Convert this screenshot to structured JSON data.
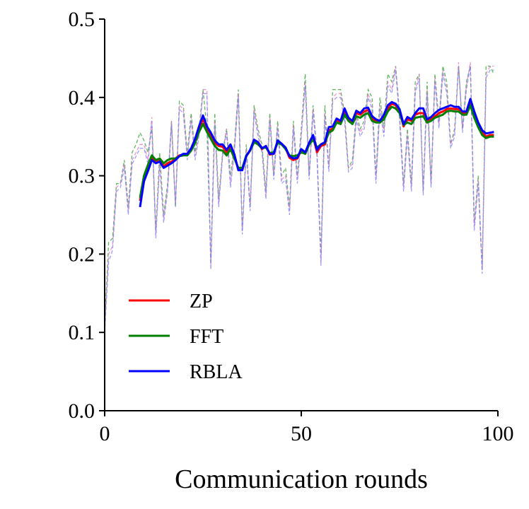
{
  "chart_data": {
    "type": "line",
    "title": "",
    "xlabel": "Communication rounds",
    "ylabel": "",
    "xlim": [
      0,
      100
    ],
    "ylim": [
      0,
      0.5
    ],
    "xticks": [
      0,
      50,
      100
    ],
    "xtick_labels": [
      "0",
      "50",
      "100"
    ],
    "yticks": [
      0.0,
      0.1,
      0.2,
      0.3,
      0.4,
      0.5
    ],
    "ytick_labels": [
      "0.0",
      "0.1",
      "0.2",
      "0.3",
      "0.4",
      "0.5"
    ],
    "grid": false,
    "legend_position": "lower-left",
    "series": [
      {
        "name": "ZP",
        "color": "#ff0000",
        "style": "solid",
        "x": [
          9,
          10,
          11,
          12,
          13,
          14,
          15,
          16,
          17,
          18,
          19,
          20,
          21,
          22,
          23,
          24,
          25,
          26,
          27,
          28,
          29,
          30,
          31,
          32,
          33,
          34,
          35,
          36,
          37,
          38,
          39,
          40,
          41,
          42,
          43,
          44,
          45,
          46,
          47,
          48,
          49,
          50,
          51,
          52,
          53,
          54,
          55,
          56,
          57,
          58,
          59,
          60,
          61,
          62,
          63,
          64,
          65,
          66,
          67,
          68,
          69,
          70,
          71,
          72,
          73,
          74,
          75,
          76,
          77,
          78,
          79,
          80,
          81,
          82,
          83,
          84,
          85,
          86,
          87,
          88,
          89,
          90,
          91,
          92,
          93,
          94,
          95,
          96,
          97,
          98,
          99
        ],
        "values": [
          0.268,
          0.297,
          0.31,
          0.323,
          0.318,
          0.322,
          0.312,
          0.316,
          0.318,
          0.322,
          0.326,
          0.327,
          0.327,
          0.333,
          0.343,
          0.36,
          0.372,
          0.36,
          0.352,
          0.342,
          0.338,
          0.337,
          0.33,
          0.338,
          0.325,
          0.308,
          0.308,
          0.325,
          0.332,
          0.345,
          0.342,
          0.334,
          0.338,
          0.327,
          0.328,
          0.344,
          0.34,
          0.335,
          0.323,
          0.32,
          0.322,
          0.333,
          0.328,
          0.34,
          0.35,
          0.33,
          0.338,
          0.34,
          0.358,
          0.36,
          0.37,
          0.368,
          0.383,
          0.372,
          0.368,
          0.38,
          0.378,
          0.382,
          0.384,
          0.372,
          0.37,
          0.368,
          0.375,
          0.386,
          0.392,
          0.39,
          0.382,
          0.363,
          0.372,
          0.37,
          0.378,
          0.38,
          0.38,
          0.37,
          0.372,
          0.376,
          0.38,
          0.382,
          0.385,
          0.386,
          0.385,
          0.385,
          0.38,
          0.38,
          0.395,
          0.378,
          0.365,
          0.355,
          0.35,
          0.352,
          0.352
        ]
      },
      {
        "name": "FFT",
        "color": "#008000",
        "style": "solid",
        "x": [
          9,
          10,
          11,
          12,
          13,
          14,
          15,
          16,
          17,
          18,
          19,
          20,
          21,
          22,
          23,
          24,
          25,
          26,
          27,
          28,
          29,
          30,
          31,
          32,
          33,
          34,
          35,
          36,
          37,
          38,
          39,
          40,
          41,
          42,
          43,
          44,
          45,
          46,
          47,
          48,
          49,
          50,
          51,
          52,
          53,
          54,
          55,
          56,
          57,
          58,
          59,
          60,
          61,
          62,
          63,
          64,
          65,
          66,
          67,
          68,
          69,
          70,
          71,
          72,
          73,
          74,
          75,
          76,
          77,
          78,
          79,
          80,
          81,
          82,
          83,
          84,
          85,
          86,
          87,
          88,
          89,
          90,
          91,
          92,
          93,
          94,
          95,
          96,
          97,
          98,
          99
        ],
        "values": [
          0.272,
          0.3,
          0.314,
          0.326,
          0.32,
          0.322,
          0.316,
          0.32,
          0.322,
          0.322,
          0.325,
          0.326,
          0.326,
          0.332,
          0.342,
          0.356,
          0.366,
          0.356,
          0.347,
          0.338,
          0.333,
          0.332,
          0.326,
          0.334,
          0.322,
          0.31,
          0.31,
          0.326,
          0.332,
          0.343,
          0.34,
          0.335,
          0.336,
          0.329,
          0.33,
          0.342,
          0.34,
          0.334,
          0.326,
          0.325,
          0.326,
          0.33,
          0.328,
          0.34,
          0.346,
          0.336,
          0.34,
          0.342,
          0.355,
          0.358,
          0.368,
          0.366,
          0.378,
          0.37,
          0.366,
          0.376,
          0.374,
          0.378,
          0.38,
          0.37,
          0.368,
          0.368,
          0.372,
          0.382,
          0.388,
          0.386,
          0.38,
          0.365,
          0.368,
          0.366,
          0.374,
          0.375,
          0.376,
          0.368,
          0.37,
          0.374,
          0.376,
          0.378,
          0.382,
          0.383,
          0.382,
          0.382,
          0.378,
          0.378,
          0.39,
          0.374,
          0.362,
          0.352,
          0.348,
          0.35,
          0.35
        ]
      },
      {
        "name": "RBLA",
        "color": "#0000ff",
        "style": "solid",
        "x": [
          9,
          10,
          11,
          12,
          13,
          14,
          15,
          16,
          17,
          18,
          19,
          20,
          21,
          22,
          23,
          24,
          25,
          26,
          27,
          28,
          29,
          30,
          31,
          32,
          33,
          34,
          35,
          36,
          37,
          38,
          39,
          40,
          41,
          42,
          43,
          44,
          45,
          46,
          47,
          48,
          49,
          50,
          51,
          52,
          53,
          54,
          55,
          56,
          57,
          58,
          59,
          60,
          61,
          62,
          63,
          64,
          65,
          66,
          67,
          68,
          69,
          70,
          71,
          72,
          73,
          74,
          75,
          76,
          77,
          78,
          79,
          80,
          81,
          82,
          83,
          84,
          85,
          86,
          87,
          88,
          89,
          90,
          91,
          92,
          93,
          94,
          95,
          96,
          97,
          98,
          99
        ],
        "values": [
          0.26,
          0.293,
          0.306,
          0.32,
          0.316,
          0.318,
          0.31,
          0.313,
          0.316,
          0.32,
          0.325,
          0.328,
          0.328,
          0.335,
          0.347,
          0.363,
          0.377,
          0.363,
          0.355,
          0.345,
          0.34,
          0.34,
          0.333,
          0.34,
          0.327,
          0.307,
          0.307,
          0.325,
          0.333,
          0.346,
          0.343,
          0.335,
          0.338,
          0.328,
          0.328,
          0.345,
          0.341,
          0.336,
          0.325,
          0.322,
          0.323,
          0.334,
          0.33,
          0.342,
          0.352,
          0.333,
          0.34,
          0.343,
          0.362,
          0.363,
          0.373,
          0.37,
          0.386,
          0.374,
          0.37,
          0.383,
          0.38,
          0.386,
          0.387,
          0.376,
          0.372,
          0.37,
          0.378,
          0.39,
          0.394,
          0.392,
          0.385,
          0.366,
          0.375,
          0.372,
          0.38,
          0.386,
          0.386,
          0.372,
          0.375,
          0.38,
          0.384,
          0.386,
          0.388,
          0.39,
          0.388,
          0.388,
          0.382,
          0.382,
          0.398,
          0.382,
          0.368,
          0.358,
          0.354,
          0.355,
          0.356
        ]
      }
    ],
    "raw_series": [
      {
        "color": "#2ca02c",
        "style": "dashed",
        "x": [
          0,
          1,
          2,
          3,
          4,
          5,
          6,
          7,
          8,
          9,
          10,
          11,
          12,
          13,
          14,
          15,
          16,
          17,
          18,
          19,
          20,
          21,
          22,
          23,
          24,
          25,
          26,
          27,
          28,
          29,
          30,
          31,
          32,
          33,
          34,
          35,
          36,
          37,
          38,
          39,
          40,
          41,
          42,
          43,
          44,
          45,
          46,
          47,
          48,
          49,
          50,
          51,
          52,
          53,
          54,
          55,
          56,
          57,
          58,
          59,
          60,
          61,
          62,
          63,
          64,
          65,
          66,
          67,
          68,
          69,
          70,
          71,
          72,
          73,
          74,
          75,
          76,
          77,
          78,
          79,
          80,
          81,
          82,
          83,
          84,
          85,
          86,
          87,
          88,
          89,
          90,
          91,
          92,
          93,
          94,
          95,
          96,
          97,
          98,
          99
        ],
        "values": [
          0.11,
          0.215,
          0.22,
          0.29,
          0.29,
          0.32,
          0.26,
          0.33,
          0.34,
          0.355,
          0.345,
          0.33,
          0.36,
          0.23,
          0.33,
          0.25,
          0.29,
          0.37,
          0.26,
          0.395,
          0.39,
          0.33,
          0.38,
          0.33,
          0.36,
          0.41,
          0.36,
          0.19,
          0.38,
          0.27,
          0.33,
          0.36,
          0.3,
          0.34,
          0.41,
          0.23,
          0.34,
          0.26,
          0.39,
          0.36,
          0.34,
          0.28,
          0.38,
          0.3,
          0.37,
          0.3,
          0.31,
          0.26,
          0.37,
          0.3,
          0.36,
          0.43,
          0.3,
          0.39,
          0.33,
          0.2,
          0.39,
          0.31,
          0.41,
          0.41,
          0.41,
          0.38,
          0.31,
          0.32,
          0.38,
          0.36,
          0.37,
          0.41,
          0.4,
          0.3,
          0.4,
          0.36,
          0.43,
          0.42,
          0.44,
          0.38,
          0.29,
          0.36,
          0.29,
          0.42,
          0.43,
          0.28,
          0.42,
          0.29,
          0.43,
          0.37,
          0.44,
          0.42,
          0.34,
          0.36,
          0.44,
          0.36,
          0.42,
          0.44,
          0.24,
          0.3,
          0.18,
          0.44,
          0.44,
          0.43
        ]
      },
      {
        "color": "#e377c2",
        "style": "dashed",
        "x": [
          0,
          1,
          2,
          3,
          4,
          5,
          6,
          7,
          8,
          9,
          10,
          11,
          12,
          13,
          14,
          15,
          16,
          17,
          18,
          19,
          20,
          21,
          22,
          23,
          24,
          25,
          26,
          27,
          28,
          29,
          30,
          31,
          32,
          33,
          34,
          35,
          36,
          37,
          38,
          39,
          40,
          41,
          42,
          43,
          44,
          45,
          46,
          47,
          48,
          49,
          50,
          51,
          52,
          53,
          54,
          55,
          56,
          57,
          58,
          59,
          60,
          61,
          62,
          63,
          64,
          65,
          66,
          67,
          68,
          69,
          70,
          71,
          72,
          73,
          74,
          75,
          76,
          77,
          78,
          79,
          80,
          81,
          82,
          83,
          84,
          85,
          86,
          87,
          88,
          89,
          90,
          91,
          92,
          93,
          94,
          95,
          96,
          97,
          98,
          99
        ],
        "values": [
          0.105,
          0.2,
          0.21,
          0.285,
          0.29,
          0.315,
          0.255,
          0.32,
          0.33,
          0.34,
          0.34,
          0.32,
          0.375,
          0.225,
          0.32,
          0.245,
          0.285,
          0.37,
          0.265,
          0.39,
          0.385,
          0.325,
          0.375,
          0.325,
          0.355,
          0.41,
          0.41,
          0.185,
          0.37,
          0.265,
          0.33,
          0.36,
          0.29,
          0.335,
          0.405,
          0.23,
          0.335,
          0.26,
          0.385,
          0.355,
          0.335,
          0.275,
          0.375,
          0.3,
          0.365,
          0.295,
          0.3,
          0.255,
          0.365,
          0.295,
          0.355,
          0.42,
          0.3,
          0.385,
          0.33,
          0.19,
          0.38,
          0.31,
          0.4,
          0.405,
          0.405,
          0.375,
          0.31,
          0.315,
          0.375,
          0.355,
          0.365,
          0.405,
          0.39,
          0.295,
          0.39,
          0.355,
          0.42,
          0.41,
          0.44,
          0.375,
          0.285,
          0.355,
          0.285,
          0.41,
          0.43,
          0.28,
          0.41,
          0.29,
          0.425,
          0.365,
          0.435,
          0.41,
          0.34,
          0.355,
          0.445,
          0.36,
          0.415,
          0.445,
          0.235,
          0.295,
          0.18,
          0.43,
          0.44,
          0.44
        ]
      },
      {
        "color": "#7f7fff",
        "style": "dashed",
        "x": [
          0,
          1,
          2,
          3,
          4,
          5,
          6,
          7,
          8,
          9,
          10,
          11,
          12,
          13,
          14,
          15,
          16,
          17,
          18,
          19,
          20,
          21,
          22,
          23,
          24,
          25,
          26,
          27,
          28,
          29,
          30,
          31,
          32,
          33,
          34,
          35,
          36,
          37,
          38,
          39,
          40,
          41,
          42,
          43,
          44,
          45,
          46,
          47,
          48,
          49,
          50,
          51,
          52,
          53,
          54,
          55,
          56,
          57,
          58,
          59,
          60,
          61,
          62,
          63,
          64,
          65,
          66,
          67,
          68,
          69,
          70,
          71,
          72,
          73,
          74,
          75,
          76,
          77,
          78,
          79,
          80,
          81,
          82,
          83,
          84,
          85,
          86,
          87,
          88,
          89,
          90,
          91,
          92,
          93,
          94,
          95,
          96,
          97,
          98,
          99
        ],
        "values": [
          0.1,
          0.19,
          0.205,
          0.28,
          0.285,
          0.31,
          0.25,
          0.315,
          0.325,
          0.335,
          0.335,
          0.315,
          0.37,
          0.22,
          0.315,
          0.24,
          0.28,
          0.365,
          0.26,
          0.385,
          0.38,
          0.32,
          0.37,
          0.32,
          0.35,
          0.405,
          0.405,
          0.18,
          0.365,
          0.26,
          0.325,
          0.355,
          0.285,
          0.33,
          0.4,
          0.225,
          0.33,
          0.255,
          0.38,
          0.35,
          0.33,
          0.27,
          0.37,
          0.295,
          0.36,
          0.29,
          0.295,
          0.25,
          0.36,
          0.29,
          0.35,
          0.415,
          0.295,
          0.38,
          0.325,
          0.185,
          0.375,
          0.305,
          0.395,
          0.4,
          0.4,
          0.37,
          0.305,
          0.31,
          0.37,
          0.35,
          0.36,
          0.4,
          0.385,
          0.29,
          0.385,
          0.35,
          0.415,
          0.405,
          0.435,
          0.37,
          0.28,
          0.35,
          0.28,
          0.405,
          0.425,
          0.275,
          0.405,
          0.285,
          0.42,
          0.36,
          0.43,
          0.405,
          0.335,
          0.35,
          0.44,
          0.355,
          0.41,
          0.44,
          0.23,
          0.29,
          0.175,
          0.425,
          0.435,
          0.435
        ]
      }
    ]
  }
}
